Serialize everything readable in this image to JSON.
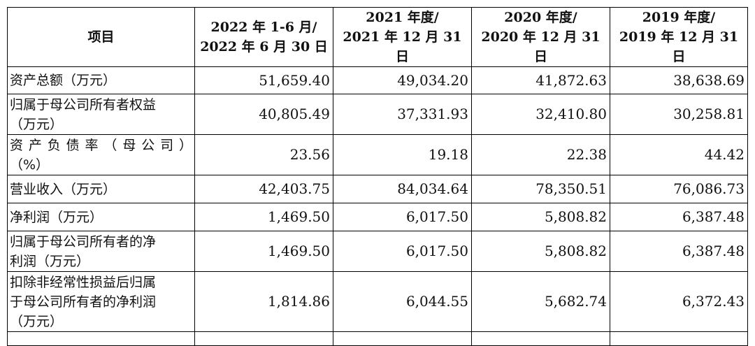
{
  "header": {
    "item": "项目",
    "periods": [
      {
        "line1": "2022 年 1-6 月/",
        "line2": "2022 年 6 月 30 日"
      },
      {
        "line1": "2021 年度/",
        "line2": "2021 年 12 月 31 日"
      },
      {
        "line1": "2020 年度/",
        "line2": "2020 年 12 月 31 日"
      },
      {
        "line1": "2019 年度/",
        "line2": "2019 年 12 月 31 日"
      }
    ]
  },
  "rows": [
    {
      "label1": "资产总额（万元）",
      "label2": "",
      "values": [
        "51,659.40",
        "49,034.20",
        "41,872.63",
        "38,638.69"
      ]
    },
    {
      "label1": "归属于母公司所有者权益",
      "label2": "（万元）",
      "values": [
        "40,805.49",
        "37,331.93",
        "32,410.80",
        "30,258.81"
      ]
    },
    {
      "label1": "资产负债率（母公司）",
      "label2": "（%）",
      "values": [
        "23.56",
        "19.18",
        "22.38",
        "44.42"
      ]
    },
    {
      "label1": "营业收入（万元）",
      "label2": "",
      "values": [
        "42,403.75",
        "84,034.64",
        "78,350.51",
        "76,086.73"
      ]
    },
    {
      "label1": "净利润（万元）",
      "label2": "",
      "values": [
        "1,469.50",
        "6,017.50",
        "5,808.82",
        "6,387.48"
      ]
    },
    {
      "label1": "归属于母公司所有者的净",
      "label2": "利润（万元）",
      "values": [
        "1,469.50",
        "6,017.50",
        "5,808.82",
        "6,387.48"
      ]
    },
    {
      "label1": "扣除非经常性损益后归属",
      "label2": "于母公司所有者的净利润",
      "label3": "（万元）",
      "values": [
        "1,814.86",
        "6,044.55",
        "5,682.74",
        "6,372.43"
      ]
    }
  ]
}
